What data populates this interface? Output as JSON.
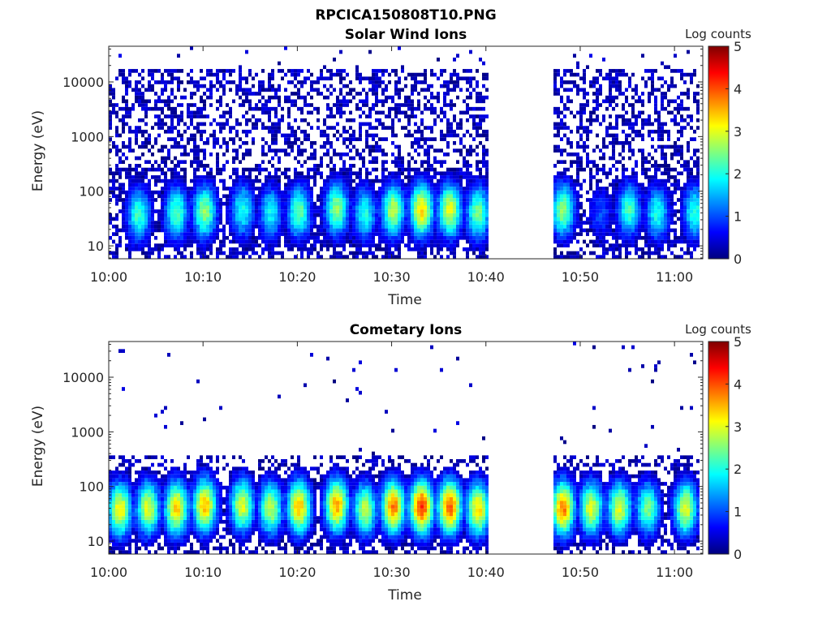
{
  "figure_title": "RPCICA150808T10.PNG",
  "colormap": [
    "#00007f",
    "#0000ff",
    "#007fff",
    "#00ffff",
    "#7fff7f",
    "#ffff00",
    "#ff7f00",
    "#ff0000",
    "#7f0000"
  ],
  "chart_data": [
    {
      "type": "heatmap",
      "title": "Solar Wind Ions",
      "xlabel": "Time",
      "ylabel": "Energy (eV)",
      "yscale": "log",
      "ylim": [
        5.8,
        45000
      ],
      "yticks": [
        10,
        100,
        1000,
        10000
      ],
      "yticklabels": [
        "10",
        "100",
        "1000",
        "10000"
      ],
      "xlim": [
        "10:00",
        "11:03"
      ],
      "xticks": [
        "10:00",
        "10:10",
        "10:20",
        "10:30",
        "10:40",
        "10:50",
        "11:00"
      ],
      "data_gap": [
        "10:40",
        "10:47"
      ],
      "colorbar": {
        "label": "Log counts",
        "range": [
          0,
          5
        ],
        "ticks": [
          "0",
          "1",
          "2",
          "3",
          "4",
          "5"
        ]
      },
      "peaks": [
        {
          "time": "10:03",
          "energy": 38,
          "log_counts": 2.2
        },
        {
          "time": "10:07",
          "energy": 40,
          "log_counts": 2.3
        },
        {
          "time": "10:10",
          "energy": 42,
          "log_counts": 2.6
        },
        {
          "time": "10:14",
          "energy": 45,
          "log_counts": 2.0
        },
        {
          "time": "10:17",
          "energy": 40,
          "log_counts": 1.9
        },
        {
          "time": "10:20",
          "energy": 42,
          "log_counts": 2.4
        },
        {
          "time": "10:24",
          "energy": 48,
          "log_counts": 2.6
        },
        {
          "time": "10:27",
          "energy": 40,
          "log_counts": 2.0
        },
        {
          "time": "10:30",
          "energy": 45,
          "log_counts": 2.8
        },
        {
          "time": "10:33",
          "energy": 45,
          "log_counts": 3.3
        },
        {
          "time": "10:36",
          "energy": 45,
          "log_counts": 3.0
        },
        {
          "time": "10:39",
          "energy": 40,
          "log_counts": 2.5
        },
        {
          "time": "10:48",
          "energy": 45,
          "log_counts": 2.6
        },
        {
          "time": "10:52",
          "energy": 40,
          "log_counts": 1.0
        },
        {
          "time": "10:55",
          "energy": 45,
          "log_counts": 2.2
        },
        {
          "time": "10:58",
          "energy": 40,
          "log_counts": 2.0
        },
        {
          "time": "11:02",
          "energy": 42,
          "log_counts": 2.1
        }
      ]
    },
    {
      "type": "heatmap",
      "title": "Cometary Ions",
      "xlabel": "Time",
      "ylabel": "Energy (eV)",
      "yscale": "log",
      "ylim": [
        5.8,
        45000
      ],
      "yticks": [
        10,
        100,
        1000,
        10000
      ],
      "yticklabels": [
        "10",
        "100",
        "1000",
        "10000"
      ],
      "xlim": [
        "10:00",
        "11:03"
      ],
      "xticks": [
        "10:00",
        "10:10",
        "10:20",
        "10:30",
        "10:40",
        "10:50",
        "11:00"
      ],
      "data_gap": [
        "10:40",
        "10:47"
      ],
      "colorbar": {
        "label": "Log counts",
        "range": [
          0,
          5
        ],
        "ticks": [
          "0",
          "1",
          "2",
          "3",
          "4",
          "5"
        ]
      },
      "peaks": [
        {
          "time": "10:01",
          "energy": 38,
          "log_counts": 3.2
        },
        {
          "time": "10:04",
          "energy": 40,
          "log_counts": 3.0
        },
        {
          "time": "10:07",
          "energy": 40,
          "log_counts": 3.4
        },
        {
          "time": "10:10",
          "energy": 45,
          "log_counts": 3.5
        },
        {
          "time": "10:14",
          "energy": 45,
          "log_counts": 3.0
        },
        {
          "time": "10:17",
          "energy": 40,
          "log_counts": 2.8
        },
        {
          "time": "10:20",
          "energy": 42,
          "log_counts": 3.5
        },
        {
          "time": "10:24",
          "energy": 45,
          "log_counts": 3.6
        },
        {
          "time": "10:27",
          "energy": 38,
          "log_counts": 2.8
        },
        {
          "time": "10:30",
          "energy": 42,
          "log_counts": 3.8
        },
        {
          "time": "10:33",
          "energy": 42,
          "log_counts": 4.2
        },
        {
          "time": "10:36",
          "energy": 42,
          "log_counts": 4.0
        },
        {
          "time": "10:39",
          "energy": 38,
          "log_counts": 3.3
        },
        {
          "time": "10:48",
          "energy": 40,
          "log_counts": 3.8
        },
        {
          "time": "10:51",
          "energy": 40,
          "log_counts": 3.0
        },
        {
          "time": "10:54",
          "energy": 40,
          "log_counts": 3.0
        },
        {
          "time": "10:57",
          "energy": 40,
          "log_counts": 2.5
        },
        {
          "time": "11:01",
          "energy": 40,
          "log_counts": 3.0
        }
      ]
    }
  ]
}
